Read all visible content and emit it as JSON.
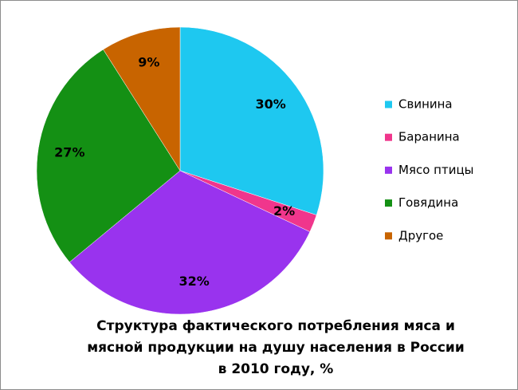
{
  "chart_data": {
    "type": "pie",
    "title": "Структура фактического потребления мяса и мясной продукции на душу населения в России в 2010 году, %",
    "categories": [
      "Свинина",
      "Баранина",
      "Мясо птицы",
      "Говядина",
      "Другое"
    ],
    "values": [
      30,
      2,
      32,
      27,
      9
    ],
    "value_labels": [
      "30%",
      "2%",
      "32%",
      "27%",
      "9%"
    ],
    "colors": [
      "#1ec8f0",
      "#f0368c",
      "#9933ee",
      "#149014",
      "#c86400"
    ],
    "legend": "right"
  }
}
